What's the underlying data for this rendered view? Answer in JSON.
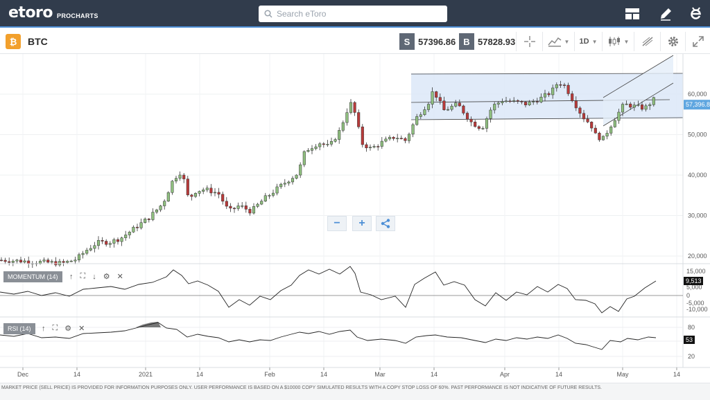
{
  "topbar": {
    "logo_text": "etoro",
    "logo_sub": "PROCHARTS",
    "search_placeholder": "Search eToro",
    "icons": [
      "layout-icon",
      "pencil-icon",
      "etoro-e-icon"
    ]
  },
  "instrument": {
    "coin_glyph": "₿",
    "symbol": "BTC",
    "sell_letter": "S",
    "sell_price": "57396.86",
    "buy_letter": "B",
    "buy_price": "57828.93"
  },
  "toolbar": {
    "interval": "1D",
    "icons": [
      "crosshair-icon",
      "chart-type-icon",
      "candlestick-icon",
      "draw-tool-icon",
      "gear-icon",
      "expand-icon"
    ]
  },
  "colors": {
    "up": "#8fbf7f",
    "down": "#b93a3a",
    "channel_fill": "#dce8f8",
    "accent": "#4d8fd6",
    "topbar_bg": "#313c4c"
  },
  "chart_data": {
    "type": "candlestick",
    "price_axis": {
      "ticks": [
        20000,
        30000,
        40000,
        50000,
        60000
      ],
      "tick_labels": [
        "20,000",
        "30,000",
        "40,000",
        "50,000",
        "60,000"
      ],
      "current_price_label": "57,396.86",
      "ylim": [
        15000,
        65000
      ]
    },
    "time_axis": {
      "labels": [
        "Dec",
        "14",
        "2021",
        "14",
        "Feb",
        "14",
        "Mar",
        "14",
        "Apr",
        "14",
        "May",
        "14"
      ]
    },
    "momentum": {
      "name": "MOMENTUM (14)",
      "ticks": [
        15000,
        5000,
        0,
        -5000,
        -10000
      ],
      "tick_labels": [
        "15,000",
        "5,000",
        "0",
        "-5,000",
        "-10,000"
      ],
      "current_label": "9,513"
    },
    "rsi": {
      "name": "RSI (14)",
      "ticks": [
        80,
        50,
        20
      ],
      "tick_labels": [
        "80",
        "50",
        "20"
      ],
      "current_label": "53"
    }
  },
  "zoom": {
    "minus": "−",
    "plus": "+"
  },
  "footer": {
    "disclaimer": "MARKET PRICE (SELL PRICE) IS PROVIDED FOR INFORMATION PURPOSES ONLY. USER PERFORMANCE IS BASED ON A $10000 COPY SIMULATED RESULTS WITH A COPY STOP LOSS OF 60%. PAST PERFORMANCE IS NOT INDICATIVE OF FUTURE RESULTS."
  }
}
